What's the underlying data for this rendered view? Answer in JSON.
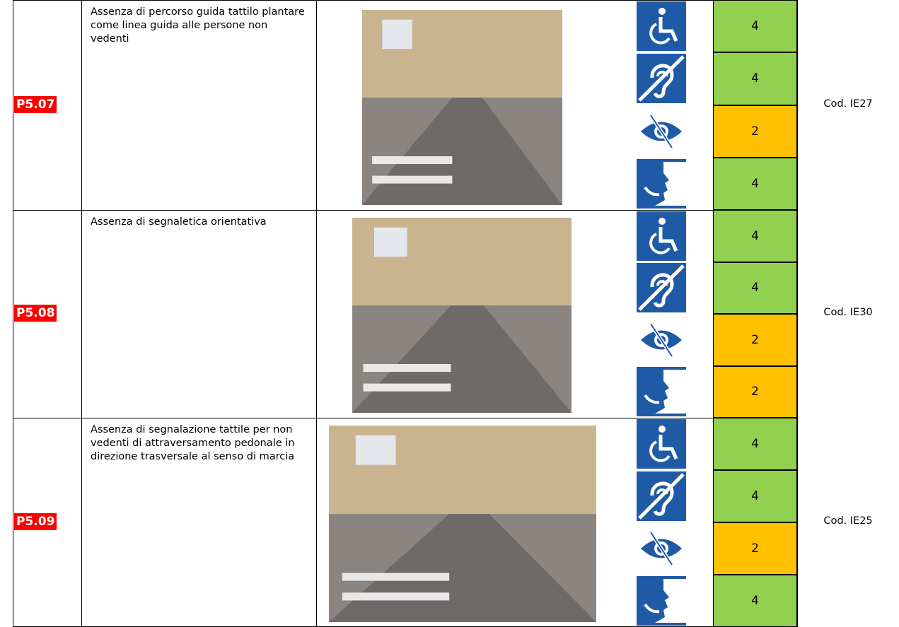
{
  "table": {
    "rows": [
      {
        "id": "P5.07",
        "description": "Assenza di percorso guida tattilo plantare come linea guida alle persone non vedenti",
        "scores": [
          "4",
          "4",
          "2",
          "4"
        ],
        "score_colors": [
          "#92d050",
          "#92d050",
          "#ffc000",
          "#92d050"
        ],
        "code": "Cod. IE27"
      },
      {
        "id": "P5.08",
        "description": "Assenza di segnaletica orientativa",
        "scores": [
          "4",
          "4",
          "2",
          "2"
        ],
        "score_colors": [
          "#92d050",
          "#92d050",
          "#ffc000",
          "#ffc000"
        ],
        "code": "Cod. IE30"
      },
      {
        "id": "P5.09",
        "description": "Assenza di segnalazione tattile per non vedenti di attraversamento pedonale in direzione trasversale al senso di marcia",
        "scores": [
          "4",
          "4",
          "2",
          "4"
        ],
        "score_colors": [
          "#92d050",
          "#92d050",
          "#ffc000",
          "#92d050"
        ],
        "code": "Cod. IE25"
      }
    ]
  }
}
